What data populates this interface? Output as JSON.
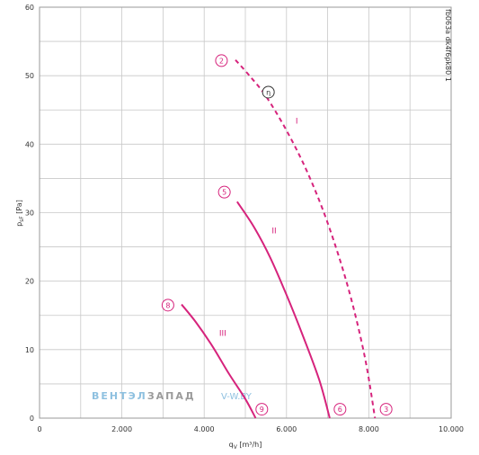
{
  "chart_data": {
    "type": "line",
    "title": "",
    "side_label": "fb063a dk4f6pk80 1",
    "xlabel": {
      "main": "q",
      "sub": "V",
      "unit": " [m³/h]"
    },
    "ylabel": {
      "main": "p",
      "sub": "sF",
      "unit": " [Pa]"
    },
    "xlim": [
      0,
      10000
    ],
    "ylim": [
      0,
      60
    ],
    "x_ticks": [
      {
        "value": 0,
        "label": "0"
      },
      {
        "value": 2000,
        "label": "2.000"
      },
      {
        "value": 4000,
        "label": "4.000"
      },
      {
        "value": 6000,
        "label": "6.000"
      },
      {
        "value": 8000,
        "label": "8.000"
      },
      {
        "value": 10000,
        "label": "10.000"
      }
    ],
    "y_ticks": [
      {
        "value": 0,
        "label": "0"
      },
      {
        "value": 10,
        "label": "10"
      },
      {
        "value": 20,
        "label": "20"
      },
      {
        "value": 30,
        "label": "30"
      },
      {
        "value": 40,
        "label": "40"
      },
      {
        "value": 50,
        "label": "50"
      },
      {
        "value": 60,
        "label": "60"
      }
    ],
    "grid": true,
    "series": [
      {
        "name": "I",
        "style": "dashed",
        "color": "#d6237c",
        "points": [
          [
            4760,
            52.3
          ],
          [
            5100,
            50.0
          ],
          [
            5500,
            47.0
          ],
          [
            6000,
            42.0
          ],
          [
            6500,
            36.0
          ],
          [
            7000,
            28.5
          ],
          [
            7500,
            19.0
          ],
          [
            7900,
            9.0
          ],
          [
            8150,
            0
          ]
        ],
        "label_at": [
          6250,
          43
        ]
      },
      {
        "name": "II",
        "style": "solid",
        "color": "#d6237c",
        "points": [
          [
            4800,
            31.6
          ],
          [
            5200,
            28.0
          ],
          [
            5600,
            23.5
          ],
          [
            6000,
            18.0
          ],
          [
            6400,
            12.0
          ],
          [
            6800,
            5.5
          ],
          [
            7050,
            0
          ]
        ],
        "label_at": [
          5700,
          27
        ]
      },
      {
        "name": "III",
        "style": "solid",
        "color": "#d6237c",
        "points": [
          [
            3450,
            16.6
          ],
          [
            3800,
            14.0
          ],
          [
            4200,
            10.5
          ],
          [
            4600,
            6.5
          ],
          [
            5000,
            2.8
          ],
          [
            5250,
            0
          ]
        ],
        "label_at": [
          4450,
          12
        ]
      }
    ],
    "markers": [
      {
        "label": "2",
        "x": 4420,
        "y": 52.2,
        "color": "#d6237c"
      },
      {
        "label": "η",
        "x": 5560,
        "y": 47.6,
        "color": "#333333"
      },
      {
        "label": "5",
        "x": 4490,
        "y": 33.0,
        "color": "#d6237c"
      },
      {
        "label": "8",
        "x": 3120,
        "y": 16.5,
        "color": "#d6237c"
      },
      {
        "label": "9",
        "x": 5400,
        "y": 1.3,
        "color": "#d6237c"
      },
      {
        "label": "6",
        "x": 7300,
        "y": 1.3,
        "color": "#d6237c"
      },
      {
        "label": "3",
        "x": 8420,
        "y": 1.3,
        "color": "#d6237c"
      }
    ]
  },
  "watermark": {
    "part1": "ВЕНТЭЛ",
    "part2": "ЗАПАД",
    "part3": "V-W.BY"
  }
}
